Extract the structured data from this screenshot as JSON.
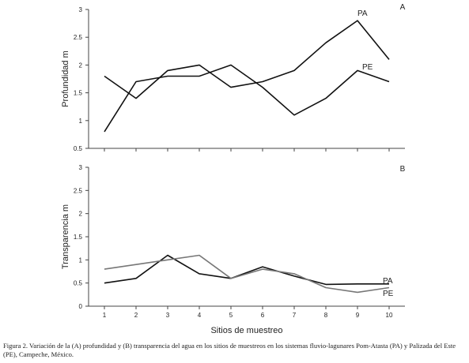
{
  "chart_data": [
    {
      "type": "line",
      "panel": "A",
      "ylabel": "Profundidad m",
      "xlim": [
        1,
        10
      ],
      "ylim": [
        0.5,
        3
      ],
      "yticks": [
        "0.5",
        "1",
        "1.5",
        "2",
        "2.5",
        "3"
      ],
      "grid": false,
      "series": [
        {
          "name": "PA",
          "color": "#111111",
          "x": [
            1,
            2,
            3,
            4,
            5,
            6,
            7,
            8,
            9,
            10
          ],
          "values": [
            0.8,
            1.7,
            1.8,
            1.8,
            2.0,
            1.6,
            1.1,
            1.4,
            1.9,
            1.7
          ]
        },
        {
          "name": "PE",
          "color": "#111111",
          "x": [
            1,
            2,
            3,
            4,
            5,
            6,
            7,
            8,
            9,
            10
          ],
          "values": [
            1.8,
            1.4,
            1.9,
            2.0,
            1.6,
            1.7,
            1.9,
            2.4,
            2.8,
            2.1
          ]
        }
      ]
    },
    {
      "type": "line",
      "panel": "B",
      "xlabel": "Sitios de muestreo",
      "ylabel": "Transparencia m",
      "xlim": [
        1,
        10
      ],
      "ylim": [
        0,
        3
      ],
      "xticks": [
        "1",
        "2",
        "3",
        "4",
        "5",
        "6",
        "7",
        "8",
        "9",
        "10"
      ],
      "yticks": [
        "0",
        "0.5",
        "1",
        "1.5",
        "2",
        "2.5",
        "3"
      ],
      "grid": false,
      "series": [
        {
          "name": "PA",
          "color": "#111111",
          "x": [
            1,
            2,
            3,
            4,
            5,
            6,
            7,
            8,
            9,
            10
          ],
          "values": [
            0.5,
            0.6,
            1.1,
            0.7,
            0.6,
            0.85,
            0.65,
            0.47,
            0.48,
            0.48
          ]
        },
        {
          "name": "PE",
          "color": "#777777",
          "x": [
            1,
            2,
            3,
            4,
            5,
            6,
            7,
            8,
            9,
            10
          ],
          "values": [
            0.8,
            0.9,
            1.0,
            1.1,
            0.6,
            0.8,
            0.7,
            0.4,
            0.3,
            0.4
          ]
        }
      ]
    }
  ],
  "caption": "Figura 2. Variación de la (A) profundidad y (B) transparencia del agua en los sitios de muestreos en los sistemas fluvio-lagunares Pom-Atasta (PA) y Palizada del Este (PE), Campeche, México."
}
